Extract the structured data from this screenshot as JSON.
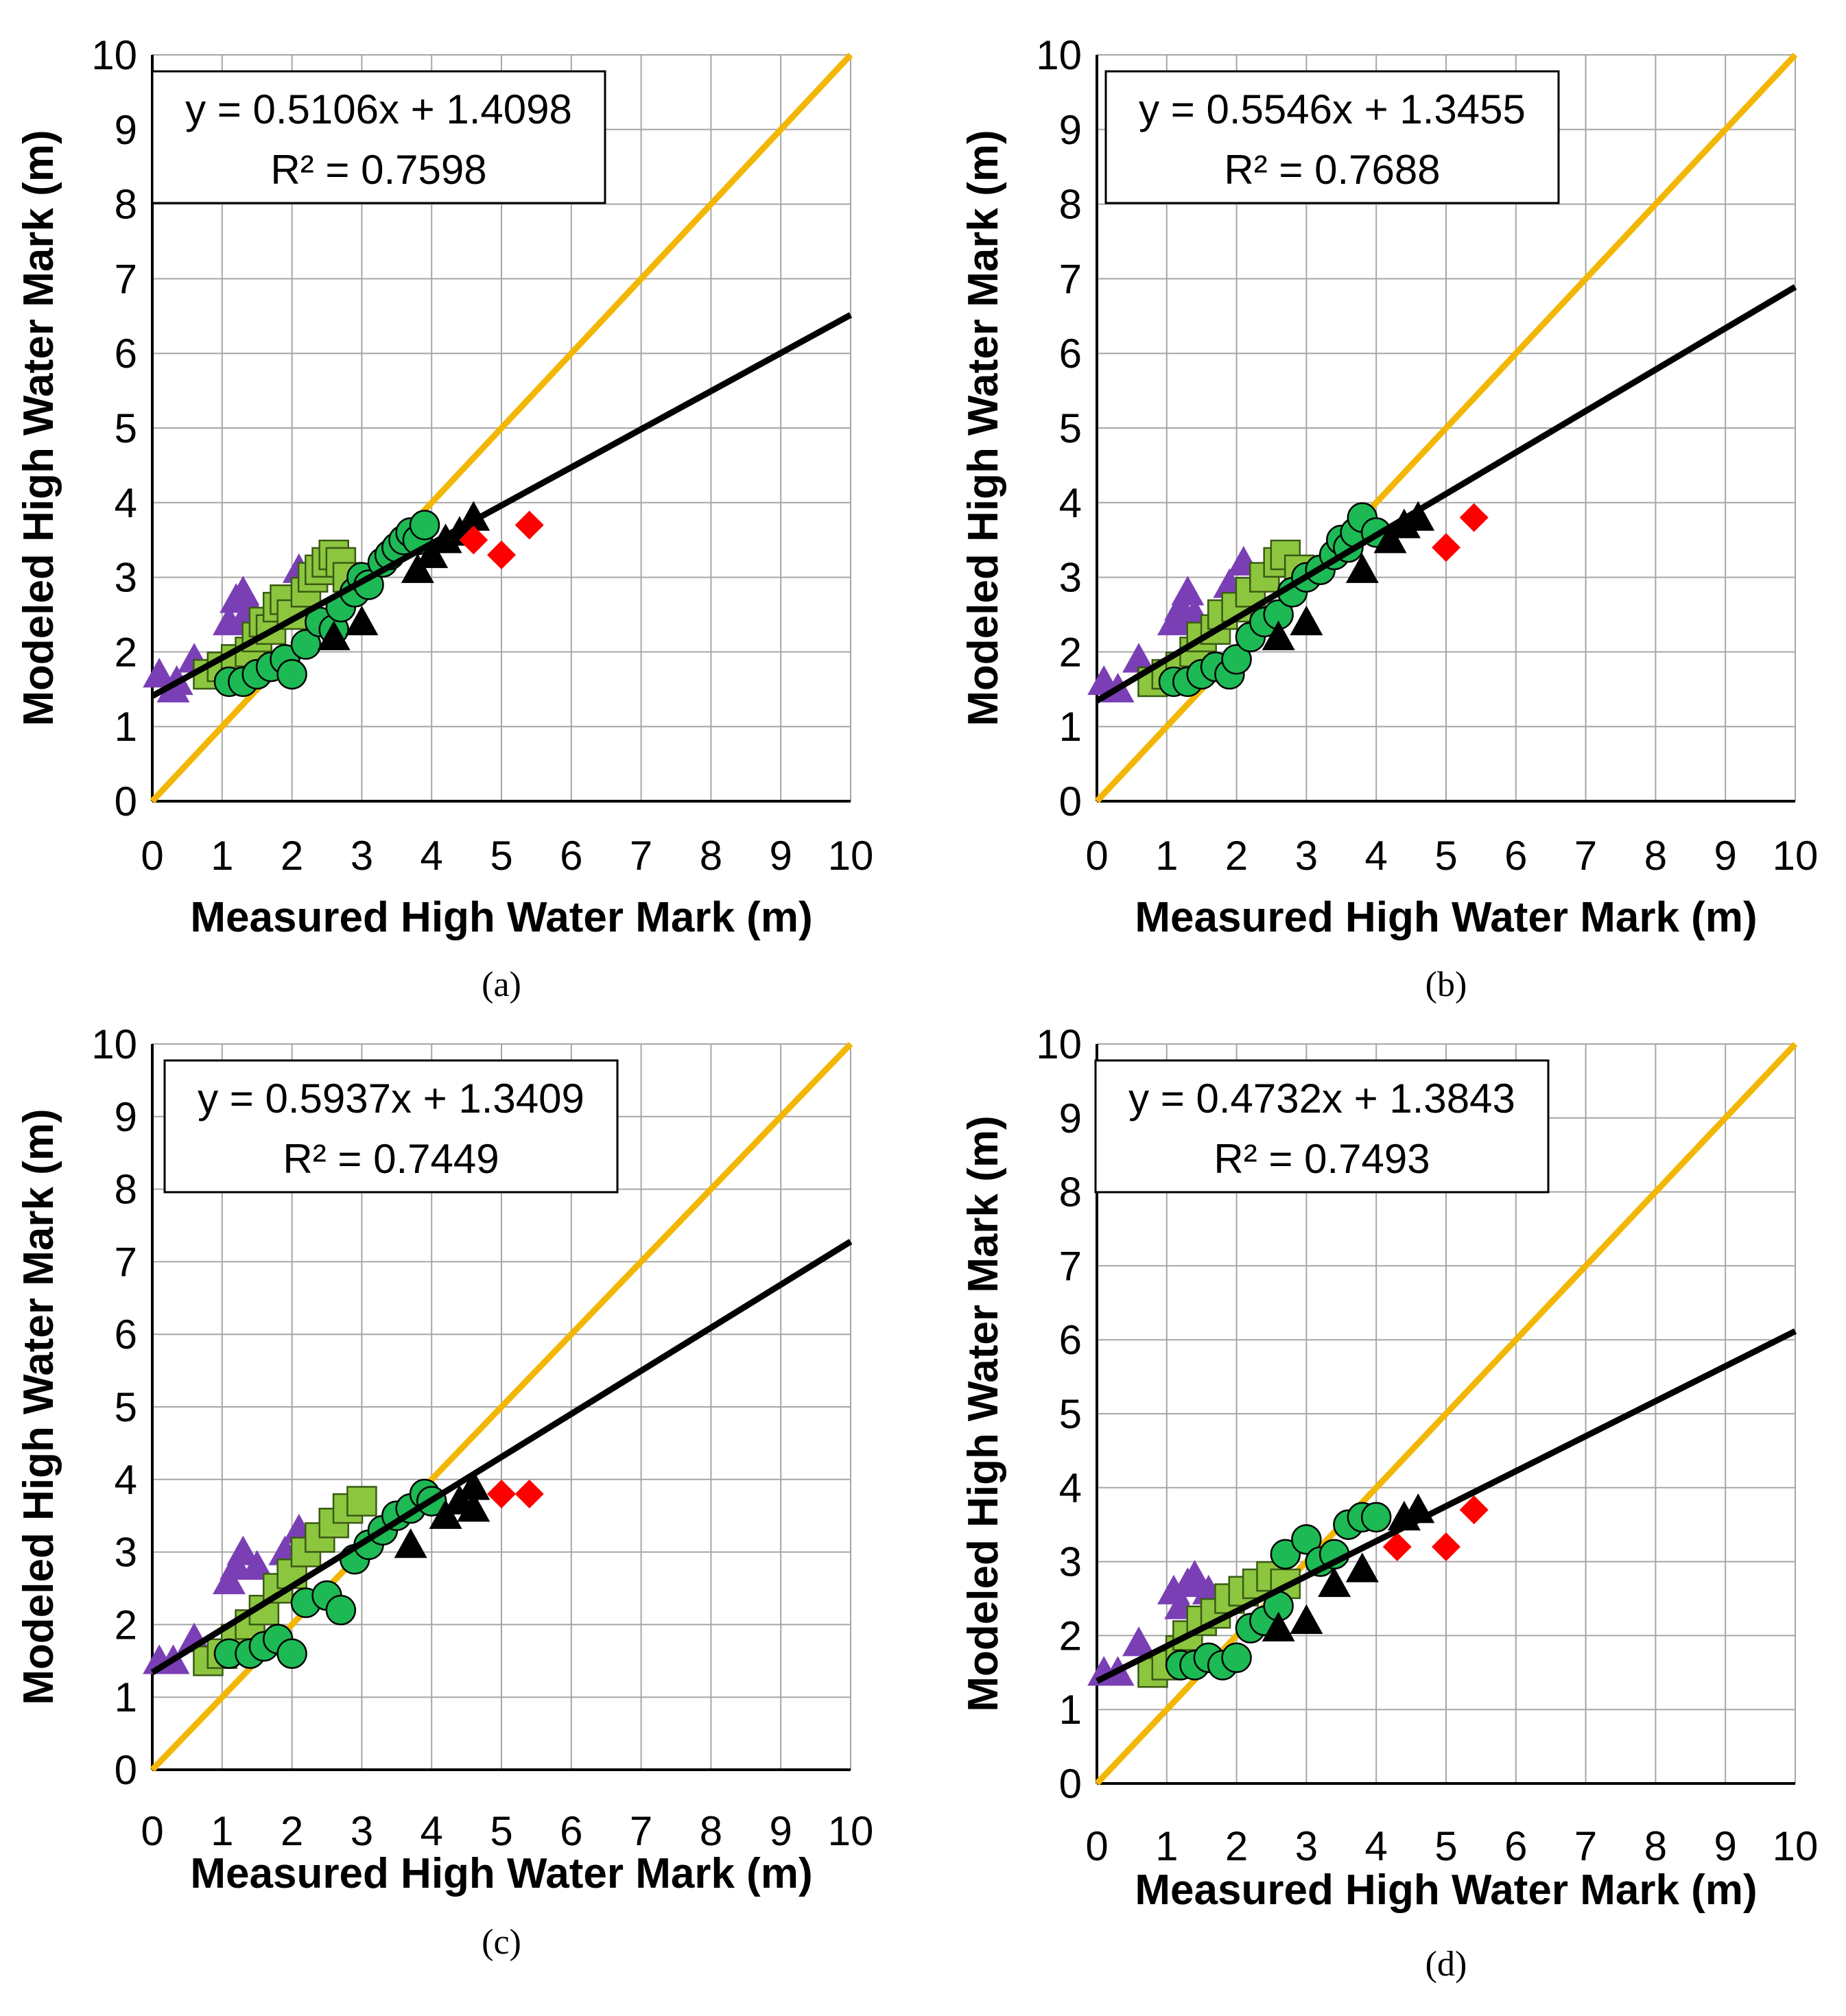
{
  "figure": {
    "x_axis_title": "Measured High Water Mark (m)",
    "y_axis_title": "Modeled High Water Mark (m)"
  },
  "colors": {
    "one_to_one_line": "#F2B705",
    "trend_line": "#000000",
    "circle_series": "#1DB954",
    "square_series": "#8CC63F",
    "purple_triangle_series": "#7B3FB5",
    "black_triangle_series": "#000000",
    "diamond_series": "#FF0000"
  },
  "chart_data": [
    {
      "type": "scatter",
      "panel_label": "(a)",
      "xlabel": "Measured High Water Mark (m)",
      "ylabel": "Modeled High Water Mark (m)",
      "xlim": [
        0,
        10
      ],
      "ylim": [
        0,
        10
      ],
      "x_ticks": [
        "0",
        "1",
        "2",
        "3",
        "4",
        "5",
        "6",
        "7",
        "8",
        "9",
        "10"
      ],
      "y_ticks": [
        "0",
        "1",
        "2",
        "3",
        "4",
        "5",
        "6",
        "7",
        "8",
        "9",
        "10"
      ],
      "grid": true,
      "equation": "y = 0.5106x + 1.4098",
      "r_squared": "R² = 0.7598",
      "trendline": {
        "slope": 0.5106,
        "intercept": 1.4098
      },
      "reference_line": {
        "slope": 1,
        "intercept": 0
      },
      "series": [
        {
          "name": "purple-triangle",
          "marker": "triangle",
          "points": [
            [
              0.1,
              1.7
            ],
            [
              0.3,
              1.5
            ],
            [
              0.35,
              1.6
            ],
            [
              0.6,
              1.9
            ],
            [
              1.1,
              2.4
            ],
            [
              1.2,
              2.7
            ],
            [
              1.3,
              2.8
            ],
            [
              1.35,
              2.5
            ],
            [
              1.4,
              2.6
            ],
            [
              2.1,
              3.1
            ]
          ]
        },
        {
          "name": "light-green-square",
          "marker": "square",
          "points": [
            [
              0.8,
              1.7
            ],
            [
              1.0,
              1.8
            ],
            [
              1.2,
              1.9
            ],
            [
              1.4,
              2.0
            ],
            [
              1.5,
              2.2
            ],
            [
              1.6,
              2.4
            ],
            [
              1.7,
              2.3
            ],
            [
              1.8,
              2.6
            ],
            [
              1.9,
              2.7
            ],
            [
              2.0,
              2.5
            ],
            [
              2.2,
              2.8
            ],
            [
              2.3,
              3.0
            ],
            [
              2.4,
              3.1
            ],
            [
              2.5,
              3.2
            ],
            [
              2.6,
              3.3
            ],
            [
              2.7,
              3.2
            ],
            [
              2.8,
              3.0
            ]
          ]
        },
        {
          "name": "green-circle",
          "marker": "circle",
          "points": [
            [
              1.1,
              1.6
            ],
            [
              1.3,
              1.6
            ],
            [
              1.5,
              1.7
            ],
            [
              1.7,
              1.8
            ],
            [
              1.9,
              1.9
            ],
            [
              2.0,
              1.7
            ],
            [
              2.2,
              2.1
            ],
            [
              2.4,
              2.4
            ],
            [
              2.6,
              2.3
            ],
            [
              2.7,
              2.6
            ],
            [
              2.9,
              2.8
            ],
            [
              3.0,
              3.0
            ],
            [
              3.1,
              2.9
            ],
            [
              3.3,
              3.2
            ],
            [
              3.4,
              3.3
            ],
            [
              3.5,
              3.4
            ],
            [
              3.6,
              3.5
            ],
            [
              3.7,
              3.6
            ],
            [
              3.8,
              3.5
            ],
            [
              3.9,
              3.7
            ]
          ]
        },
        {
          "name": "black-triangle",
          "marker": "triangle",
          "points": [
            [
              2.6,
              2.2
            ],
            [
              3.0,
              2.4
            ],
            [
              3.8,
              3.1
            ],
            [
              4.0,
              3.3
            ],
            [
              4.2,
              3.5
            ],
            [
              4.4,
              3.6
            ],
            [
              4.6,
              3.8
            ]
          ]
        },
        {
          "name": "red-diamond",
          "marker": "diamond",
          "points": [
            [
              4.6,
              3.5
            ],
            [
              5.0,
              3.3
            ],
            [
              5.4,
              3.7
            ]
          ]
        }
      ]
    },
    {
      "type": "scatter",
      "panel_label": "(b)",
      "xlabel": "Measured High Water Mark (m)",
      "ylabel": "Modeled High Water Mark (m)",
      "xlim": [
        0,
        10
      ],
      "ylim": [
        0,
        10
      ],
      "x_ticks": [
        "0",
        "1",
        "2",
        "3",
        "4",
        "5",
        "6",
        "7",
        "8",
        "9",
        "10"
      ],
      "y_ticks": [
        "0",
        "1",
        "2",
        "3",
        "4",
        "5",
        "6",
        "7",
        "8",
        "9",
        "10"
      ],
      "grid": true,
      "equation": "y = 0.5546x + 1.3455",
      "r_squared": "R² = 0.7688",
      "trendline": {
        "slope": 0.5546,
        "intercept": 1.3455
      },
      "reference_line": {
        "slope": 1,
        "intercept": 0
      },
      "series": [
        {
          "name": "purple-triangle",
          "marker": "triangle",
          "points": [
            [
              0.1,
              1.6
            ],
            [
              0.3,
              1.5
            ],
            [
              0.6,
              1.9
            ],
            [
              1.1,
              2.4
            ],
            [
              1.2,
              2.6
            ],
            [
              1.3,
              2.8
            ],
            [
              1.4,
              2.5
            ],
            [
              1.9,
              2.9
            ],
            [
              2.1,
              3.2
            ]
          ]
        },
        {
          "name": "light-green-square",
          "marker": "square",
          "points": [
            [
              0.8,
              1.6
            ],
            [
              1.0,
              1.7
            ],
            [
              1.2,
              1.8
            ],
            [
              1.4,
              2.0
            ],
            [
              1.5,
              2.2
            ],
            [
              1.7,
              2.3
            ],
            [
              1.8,
              2.5
            ],
            [
              2.0,
              2.6
            ],
            [
              2.2,
              2.8
            ],
            [
              2.4,
              3.0
            ],
            [
              2.6,
              3.2
            ],
            [
              2.7,
              3.3
            ],
            [
              2.9,
              3.1
            ]
          ]
        },
        {
          "name": "green-circle",
          "marker": "circle",
          "points": [
            [
              1.1,
              1.6
            ],
            [
              1.3,
              1.6
            ],
            [
              1.5,
              1.7
            ],
            [
              1.7,
              1.8
            ],
            [
              1.9,
              1.7
            ],
            [
              2.0,
              1.9
            ],
            [
              2.2,
              2.2
            ],
            [
              2.4,
              2.4
            ],
            [
              2.6,
              2.5
            ],
            [
              2.8,
              2.8
            ],
            [
              3.0,
              3.0
            ],
            [
              3.2,
              3.1
            ],
            [
              3.4,
              3.3
            ],
            [
              3.5,
              3.5
            ],
            [
              3.6,
              3.4
            ],
            [
              3.7,
              3.6
            ],
            [
              3.8,
              3.8
            ],
            [
              4.0,
              3.6
            ]
          ]
        },
        {
          "name": "black-triangle",
          "marker": "triangle",
          "points": [
            [
              2.6,
              2.2
            ],
            [
              3.0,
              2.4
            ],
            [
              3.8,
              3.1
            ],
            [
              4.2,
              3.5
            ],
            [
              4.4,
              3.7
            ],
            [
              4.6,
              3.8
            ]
          ]
        },
        {
          "name": "red-diamond",
          "marker": "diamond",
          "points": [
            [
              5.0,
              3.4
            ],
            [
              5.4,
              3.8
            ]
          ]
        }
      ]
    },
    {
      "type": "scatter",
      "panel_label": "(c)",
      "xlabel": "Measured High Water Mark (m)",
      "ylabel": "Modeled High Water Mark (m)",
      "xlim": [
        0,
        10
      ],
      "ylim": [
        0,
        10
      ],
      "x_ticks": [
        "0",
        "1",
        "2",
        "3",
        "4",
        "5",
        "6",
        "7",
        "8",
        "9",
        "10"
      ],
      "y_ticks": [
        "0",
        "1",
        "2",
        "3",
        "4",
        "5",
        "6",
        "7",
        "8",
        "9",
        "10"
      ],
      "grid": true,
      "equation": "y = 0.5937x + 1.3409",
      "r_squared": "R² = 0.7449",
      "trendline": {
        "slope": 0.5937,
        "intercept": 1.3409
      },
      "reference_line": {
        "slope": 1,
        "intercept": 0
      },
      "series": [
        {
          "name": "purple-triangle",
          "marker": "triangle",
          "points": [
            [
              0.1,
              1.5
            ],
            [
              0.3,
              1.5
            ],
            [
              0.6,
              1.8
            ],
            [
              1.1,
              2.6
            ],
            [
              1.2,
              2.8
            ],
            [
              1.3,
              3.0
            ],
            [
              1.5,
              2.8
            ],
            [
              1.9,
              3.0
            ],
            [
              2.1,
              3.3
            ]
          ]
        },
        {
          "name": "light-green-square",
          "marker": "square",
          "points": [
            [
              0.8,
              1.5
            ],
            [
              1.0,
              1.6
            ],
            [
              1.2,
              1.8
            ],
            [
              1.4,
              2.0
            ],
            [
              1.6,
              2.2
            ],
            [
              1.8,
              2.5
            ],
            [
              2.0,
              2.7
            ],
            [
              2.2,
              3.0
            ],
            [
              2.4,
              3.2
            ],
            [
              2.6,
              3.4
            ],
            [
              2.8,
              3.6
            ],
            [
              3.0,
              3.7
            ]
          ]
        },
        {
          "name": "green-circle",
          "marker": "circle",
          "points": [
            [
              1.1,
              1.6
            ],
            [
              1.4,
              1.6
            ],
            [
              1.6,
              1.7
            ],
            [
              1.8,
              1.8
            ],
            [
              2.0,
              1.6
            ],
            [
              2.2,
              2.3
            ],
            [
              2.5,
              2.4
            ],
            [
              2.7,
              2.2
            ],
            [
              2.9,
              2.9
            ],
            [
              3.1,
              3.1
            ],
            [
              3.3,
              3.3
            ],
            [
              3.5,
              3.5
            ],
            [
              3.7,
              3.6
            ],
            [
              3.9,
              3.8
            ],
            [
              4.0,
              3.7
            ]
          ]
        },
        {
          "name": "black-triangle",
          "marker": "triangle",
          "points": [
            [
              3.7,
              3.1
            ],
            [
              4.2,
              3.5
            ],
            [
              4.4,
              3.7
            ],
            [
              4.6,
              3.9
            ],
            [
              4.6,
              3.6
            ]
          ]
        },
        {
          "name": "red-diamond",
          "marker": "diamond",
          "points": [
            [
              5.0,
              3.8
            ],
            [
              5.4,
              3.8
            ]
          ]
        }
      ]
    },
    {
      "type": "scatter",
      "panel_label": "(d)",
      "xlabel": "Measured High Water Mark (m)",
      "ylabel": "Modeled High Water Mark (m)",
      "xlim": [
        0,
        10
      ],
      "ylim": [
        0,
        10
      ],
      "x_ticks": [
        "0",
        "1",
        "2",
        "3",
        "4",
        "5",
        "6",
        "7",
        "8",
        "9",
        "10"
      ],
      "y_ticks": [
        "0",
        "1",
        "2",
        "3",
        "4",
        "5",
        "6",
        "7",
        "8",
        "9",
        "10"
      ],
      "grid": true,
      "equation": "y = 0.4732x + 1.3843",
      "r_squared": "R² = 0.7493",
      "trendline": {
        "slope": 0.4732,
        "intercept": 1.3843
      },
      "reference_line": {
        "slope": 1,
        "intercept": 0
      },
      "series": [
        {
          "name": "purple-triangle",
          "marker": "triangle",
          "points": [
            [
              0.1,
              1.5
            ],
            [
              0.3,
              1.5
            ],
            [
              0.6,
              1.9
            ],
            [
              1.1,
              2.6
            ],
            [
              1.2,
              2.4
            ],
            [
              1.3,
              2.7
            ],
            [
              1.4,
              2.8
            ],
            [
              1.6,
              2.6
            ]
          ]
        },
        {
          "name": "light-green-square",
          "marker": "square",
          "points": [
            [
              0.8,
              1.5
            ],
            [
              1.0,
              1.6
            ],
            [
              1.2,
              1.8
            ],
            [
              1.3,
              2.0
            ],
            [
              1.5,
              2.2
            ],
            [
              1.7,
              2.3
            ],
            [
              1.9,
              2.5
            ],
            [
              2.1,
              2.6
            ],
            [
              2.3,
              2.7
            ],
            [
              2.5,
              2.8
            ],
            [
              2.7,
              2.7
            ]
          ]
        },
        {
          "name": "green-circle",
          "marker": "circle",
          "points": [
            [
              1.2,
              1.6
            ],
            [
              1.4,
              1.6
            ],
            [
              1.6,
              1.7
            ],
            [
              1.8,
              1.6
            ],
            [
              2.0,
              1.7
            ],
            [
              2.2,
              2.1
            ],
            [
              2.4,
              2.2
            ],
            [
              2.6,
              2.4
            ],
            [
              2.7,
              3.1
            ],
            [
              3.0,
              3.3
            ],
            [
              3.2,
              3.0
            ],
            [
              3.4,
              3.1
            ],
            [
              3.6,
              3.5
            ],
            [
              3.8,
              3.6
            ],
            [
              4.0,
              3.6
            ]
          ]
        },
        {
          "name": "black-triangle",
          "marker": "triangle",
          "points": [
            [
              2.6,
              2.1
            ],
            [
              3.0,
              2.2
            ],
            [
              3.4,
              2.7
            ],
            [
              3.8,
              2.9
            ],
            [
              4.4,
              3.6
            ],
            [
              4.6,
              3.7
            ]
          ]
        },
        {
          "name": "red-diamond",
          "marker": "diamond",
          "points": [
            [
              4.3,
              3.2
            ],
            [
              5.0,
              3.2
            ],
            [
              5.4,
              3.7
            ]
          ]
        }
      ]
    }
  ]
}
